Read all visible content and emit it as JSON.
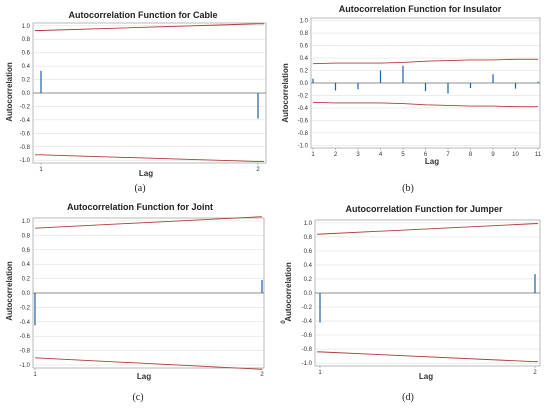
{
  "chart_data": [
    {
      "type": "bar",
      "title": "Autocorrelation Function for Cable",
      "xlabel": "Lag",
      "ylabel": "Autocorrelation",
      "x": [
        1,
        2
      ],
      "values": [
        0.33,
        -0.38
      ],
      "upper_limit": [
        0.93,
        1.03
      ],
      "lower_limit": [
        -0.92,
        -1.02
      ],
      "ylim": [
        -1.0,
        1.0
      ],
      "yticks": [
        "1.0",
        "0.8",
        "0.6",
        "0.4",
        "0.2",
        "0.0",
        "-0.2",
        "-0.4",
        "-0.6",
        "-0.8",
        "-1.0"
      ],
      "xticks": [
        "1",
        "2"
      ]
    },
    {
      "type": "bar",
      "title": "Autocorrelation Function for Insulator",
      "xlabel": "Lag",
      "ylabel": "Autocorrelation",
      "x": [
        1,
        2,
        3,
        4,
        5,
        6,
        7,
        8,
        9,
        10,
        11
      ],
      "values": [
        0.07,
        -0.12,
        -0.1,
        0.2,
        0.28,
        -0.13,
        -0.17,
        -0.08,
        0.14,
        -0.09,
        0.02
      ],
      "upper_limit": [
        0.31,
        0.32,
        0.32,
        0.32,
        0.33,
        0.35,
        0.36,
        0.37,
        0.37,
        0.38,
        0.38
      ],
      "lower_limit": [
        -0.31,
        -0.32,
        -0.32,
        -0.32,
        -0.33,
        -0.35,
        -0.36,
        -0.37,
        -0.37,
        -0.38,
        -0.38
      ],
      "ylim": [
        -1.0,
        1.0
      ],
      "yticks": [
        "1.0",
        "0.8",
        "0.6",
        "0.4",
        "0.2",
        "0.0",
        "-0.2",
        "-0.4",
        "-0.6",
        "-0.8",
        "-1.0"
      ],
      "xticks": [
        "1",
        "2",
        "3",
        "4",
        "5",
        "6",
        "7",
        "8",
        "9",
        "10",
        "11"
      ]
    },
    {
      "type": "bar",
      "title": "Autocorrelation Function for Joint",
      "xlabel": "Lag",
      "ylabel": "Autocorrelation",
      "x": [
        1,
        2
      ],
      "values": [
        -0.45,
        0.18
      ],
      "upper_limit": [
        0.9,
        1.06
      ],
      "lower_limit": [
        -0.9,
        -1.06
      ],
      "ylim": [
        -1.0,
        1.0
      ],
      "yticks": [
        "1.0",
        "0.8",
        "0.6",
        "0.4",
        "0.2",
        "0.0",
        "-0.2",
        "-0.4",
        "-0.6",
        "-0.8",
        "-1.0"
      ],
      "xticks": [
        "1",
        "2"
      ]
    },
    {
      "type": "bar",
      "title": "Autocorrelation Function for Jumper",
      "xlabel": "Lag",
      "ylabel": "Autocorrelation",
      "ylabel_extra": "0",
      "x": [
        1,
        2
      ],
      "values": [
        -0.42,
        0.27
      ],
      "upper_limit": [
        0.84,
        0.99
      ],
      "lower_limit": [
        -0.84,
        -0.98
      ],
      "ylim": [
        -1.0,
        1.0
      ],
      "yticks": [
        "1.0",
        "0.8",
        "0.6",
        "0.4",
        "0.2",
        "0.0",
        "-0.2",
        "-0.4",
        "-0.6",
        "-0.8",
        "-1.0"
      ],
      "xticks": [
        "1",
        "2"
      ]
    }
  ],
  "sublabels": [
    "(a)",
    "(b)",
    "(c)",
    "(d)"
  ],
  "colors": {
    "bar": "#1f5fa8",
    "limit": "#b23a3a",
    "grid": "#d9d9d9",
    "frame": "#9a9a9a"
  }
}
